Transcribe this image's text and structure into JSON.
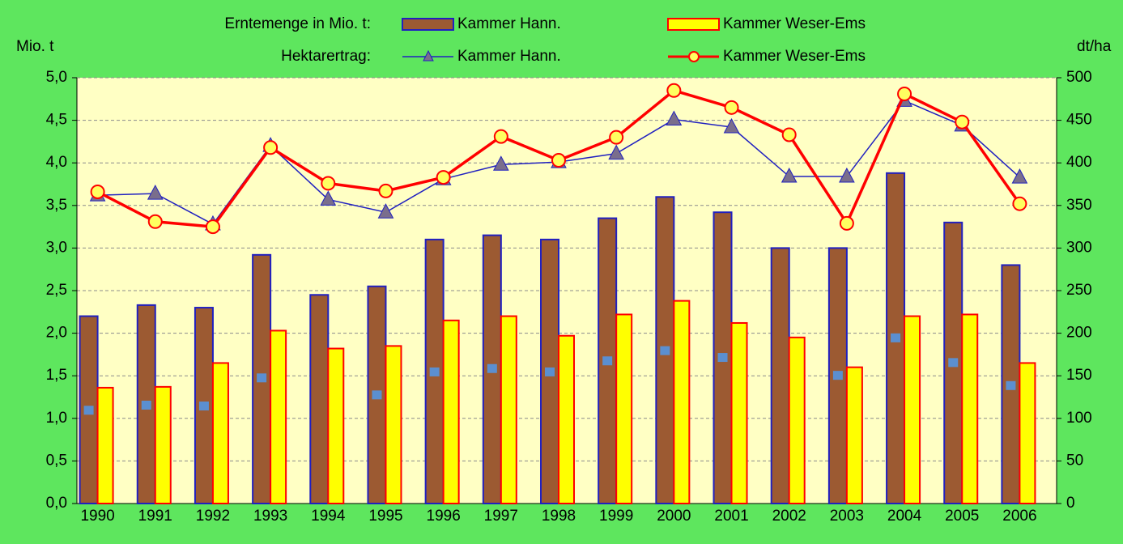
{
  "chart_data": {
    "type": "bar-line",
    "legend_bar_label": "Erntemenge in Mio. t:",
    "legend_line_label": "Hektarertrag:",
    "ylabel": "Mio. t",
    "y2label": "dt/ha",
    "categories": [
      "1990",
      "1991",
      "1992",
      "1993",
      "1994",
      "1995",
      "1996",
      "1997",
      "1998",
      "1999",
      "2000",
      "2001",
      "2002",
      "2003",
      "2004",
      "2005",
      "2006"
    ],
    "series": [
      {
        "name": "Kammer Hann.",
        "kind": "bar",
        "color": "#9c5a32",
        "edge": "#2020c0",
        "values": [
          2.2,
          2.33,
          2.3,
          2.92,
          2.45,
          2.55,
          3.1,
          3.15,
          3.1,
          3.35,
          3.6,
          3.42,
          3.0,
          3.0,
          3.88,
          3.3,
          2.8
        ]
      },
      {
        "name": "Kammer Weser-Ems",
        "kind": "bar",
        "color": "#ffff00",
        "edge": "#ff0000",
        "values": [
          1.36,
          1.37,
          1.65,
          2.03,
          1.82,
          1.85,
          2.15,
          2.2,
          1.97,
          2.22,
          2.38,
          2.12,
          1.95,
          1.6,
          2.2,
          2.22,
          1.65
        ]
      },
      {
        "kind": "marker",
        "color": "#5b8fd0",
        "values": [
          1.1,
          1.16,
          1.15,
          1.48,
          null,
          1.28,
          1.55,
          1.59,
          1.55,
          1.68,
          1.8,
          1.72,
          null,
          1.51,
          1.95,
          1.66,
          1.39
        ]
      },
      {
        "name": "Kammer Hann.",
        "kind": "line",
        "marker": "triangle",
        "axis": "y2",
        "color": "#2020c0",
        "markercolor": "#7a6e8c",
        "values": [
          362,
          364,
          328,
          420,
          357,
          342,
          381,
          398,
          401,
          411,
          451,
          442,
          384,
          384,
          473,
          444,
          383
        ]
      },
      {
        "name": "Kammer Weser-Ems",
        "kind": "line",
        "marker": "circle",
        "axis": "y2",
        "color": "#ff0000",
        "markercolor": "#ffff60",
        "values": [
          366,
          331,
          325,
          418,
          376,
          367,
          383,
          431,
          403,
          430,
          485,
          465,
          433,
          329,
          481,
          448,
          352
        ]
      }
    ],
    "ylim": [
      0,
      5
    ],
    "yticks": [
      {
        "value": 0,
        "label": "0,0"
      },
      {
        "value": 0.5,
        "label": "0,5"
      },
      {
        "value": 1,
        "label": "1,0"
      },
      {
        "value": 1.5,
        "label": "1,5"
      },
      {
        "value": 2,
        "label": "2,0"
      },
      {
        "value": 2.5,
        "label": "2,5"
      },
      {
        "value": 3,
        "label": "3,0"
      },
      {
        "value": 3.5,
        "label": "3,5"
      },
      {
        "value": 4,
        "label": "4,0"
      },
      {
        "value": 4.5,
        "label": "4,5"
      },
      {
        "value": 5,
        "label": "5,0"
      }
    ],
    "y2lim": [
      0,
      500
    ],
    "y2ticks": [
      0,
      50,
      100,
      150,
      200,
      250,
      300,
      350,
      400,
      450,
      500
    ],
    "grid": true
  }
}
